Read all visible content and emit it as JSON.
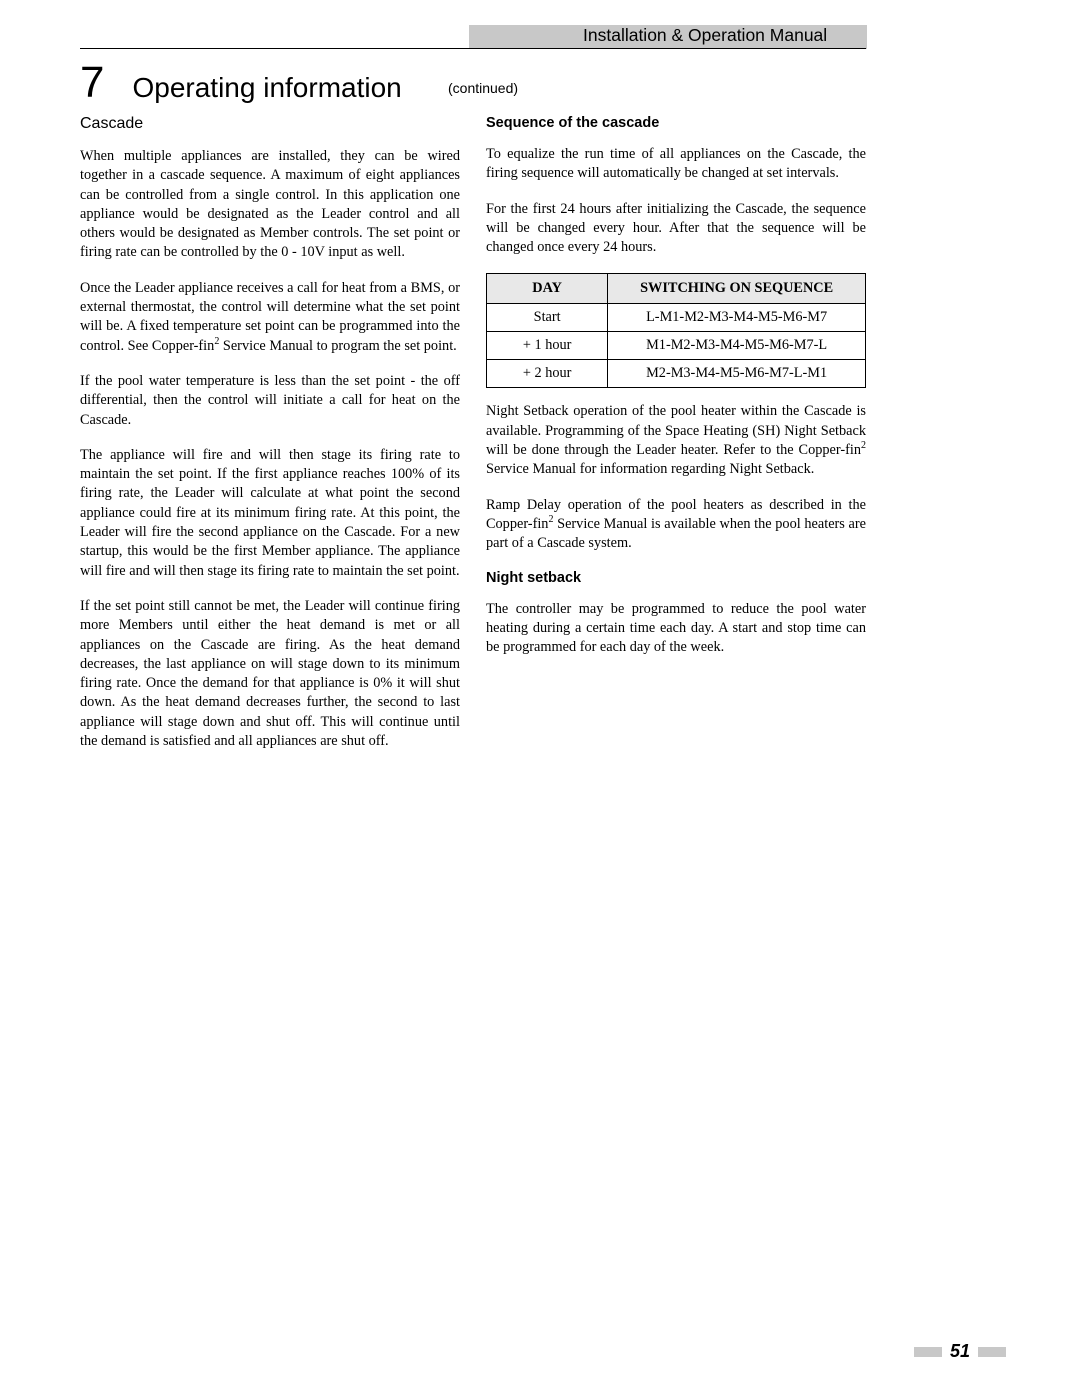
{
  "header": {
    "band_color": "#c8c8c8",
    "text": "Installation & Operation Manual"
  },
  "chapter": {
    "number": "7",
    "title": "Operating information",
    "continued": "(continued)"
  },
  "left_column": {
    "cascade_heading": "Cascade",
    "p1": "When multiple appliances are installed, they can be wired together in a cascade sequence. A maximum of eight appliances can be controlled from a single control. In this application one appliance would be designated as the Leader control and all others would be designated as Member controls.  The set point or firing rate can be controlled by the 0 - 10V input as well.",
    "p2_a": "Once the Leader appliance receives a call for heat from a BMS, or external thermostat, the control will determine what the set point will be.  A fixed temperature set point can be programmed into the control. See Copper-fin",
    "p2_b": " Service Manual to program the set point.",
    "p3": "If the pool water temperature is less than the set point - the off differential, then the control will initiate a call for heat on the Cascade.",
    "p4": "The appliance will fire and will then stage its firing rate to maintain the set point.  If the first appliance reaches 100% of its firing rate, the Leader will calculate at what point the second appliance could fire at its minimum firing rate. At this point, the Leader will fire the second appliance on the Cascade. For a new startup, this would be the first Member appliance. The appliance will fire and will then stage its firing rate to maintain the set point.",
    "p5": "If the set point still cannot be met, the Leader will continue firing more Members until either the heat demand is met or all appliances on the Cascade are firing. As the heat demand decreases, the last appliance on will stage down to its minimum firing rate. Once the demand for that appliance is 0% it will shut down. As the heat demand decreases further, the second to last appliance will stage down and shut off. This will continue until the demand is satisfied and all appliances are shut off."
  },
  "right_column": {
    "seq_heading": "Sequence of the cascade",
    "p1": "To equalize the run time of all appliances on the Cascade, the firing sequence will automatically be changed at set intervals.",
    "p2": "For the first 24 hours after initializing the Cascade, the sequence will be changed every hour. After that the sequence will be changed once every 24 hours.",
    "table": {
      "header_bg": "#e8e8e8",
      "columns": [
        "DAY",
        "SWITCHING ON SEQUENCE"
      ],
      "rows": [
        [
          "Start",
          "L-M1-M2-M3-M4-M5-M6-M7"
        ],
        [
          "+ 1 hour",
          "M1-M2-M3-M4-M5-M6-M7-L"
        ],
        [
          "+ 2 hour",
          "M2-M3-M4-M5-M6-M7-L-M1"
        ]
      ]
    },
    "p3_a": "Night Setback operation of the pool heater within the Cascade is available. Programming of the Space Heating (SH) Night Setback will be done through the Leader heater. Refer to the Copper-fin",
    "p3_b": " Service Manual for information regarding Night Setback.",
    "p4_a": "Ramp Delay operation of the pool heaters as described in the Copper-fin",
    "p4_b": " Service Manual is available when the pool heaters are part of a Cascade system.",
    "night_heading": "Night setback",
    "p5": "The controller may be programmed to reduce the pool water heating during a certain time each day.  A start and stop time can be programmed for each day of the week."
  },
  "footer": {
    "page_number": "51",
    "box_color": "#c8c8c8"
  }
}
